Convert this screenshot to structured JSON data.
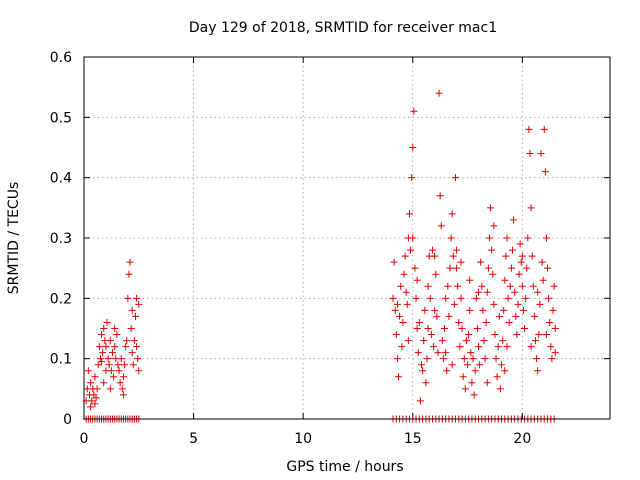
{
  "chart_data": {
    "type": "scatter",
    "title": "Day 129 of 2018, SRMTID for receiver mac1",
    "xlabel": "GPS time / hours",
    "ylabel": "SRMTID / TECUs",
    "xlim": [
      0,
      24
    ],
    "ylim": [
      0,
      0.6
    ],
    "xticks": [
      0,
      5,
      10,
      15,
      20
    ],
    "xtick_labels": [
      "0",
      "5",
      "10",
      "15",
      "20"
    ],
    "yticks": [
      0,
      0.1,
      0.2,
      0.3,
      0.4,
      0.5,
      0.6
    ],
    "ytick_labels": [
      "0",
      "0.1",
      "0.2",
      "0.3",
      "0.4",
      "0.5",
      "0.6"
    ],
    "grid": true,
    "marker": "+",
    "color": "#e00000",
    "series": [
      {
        "name": "mac1",
        "points": [
          [
            0.1,
            0.03
          ],
          [
            0.15,
            0.05
          ],
          [
            0.2,
            0.08
          ],
          [
            0.25,
            0.04
          ],
          [
            0.3,
            0.06
          ],
          [
            0.35,
            0.03
          ],
          [
            0.4,
            0.05
          ],
          [
            0.45,
            0.04
          ],
          [
            0.5,
            0.07
          ],
          [
            0.55,
            0.035
          ],
          [
            0.6,
            0.05
          ],
          [
            0.65,
            0.09
          ],
          [
            0.7,
            0.12
          ],
          [
            0.75,
            0.1
          ],
          [
            0.8,
            0.14
          ],
          [
            0.85,
            0.11
          ],
          [
            0.9,
            0.15
          ],
          [
            0.95,
            0.13
          ],
          [
            1.0,
            0.12
          ],
          [
            1.05,
            0.16
          ],
          [
            1.1,
            0.1
          ],
          [
            1.15,
            0.09
          ],
          [
            1.2,
            0.13
          ],
          [
            1.25,
            0.08
          ],
          [
            1.3,
            0.11
          ],
          [
            1.35,
            0.07
          ],
          [
            1.4,
            0.12
          ],
          [
            1.45,
            0.1
          ],
          [
            1.5,
            0.14
          ],
          [
            1.55,
            0.09
          ],
          [
            1.6,
            0.08
          ],
          [
            1.65,
            0.06
          ],
          [
            1.7,
            0.1
          ],
          [
            1.75,
            0.05
          ],
          [
            1.8,
            0.07
          ],
          [
            1.85,
            0.09
          ],
          [
            1.9,
            0.12
          ],
          [
            1.95,
            0.13
          ],
          [
            2.0,
            0.2
          ],
          [
            2.05,
            0.24
          ],
          [
            2.1,
            0.26
          ],
          [
            2.15,
            0.15
          ],
          [
            2.2,
            0.11
          ],
          [
            2.25,
            0.09
          ],
          [
            2.3,
            0.13
          ],
          [
            2.35,
            0.17
          ],
          [
            2.4,
            0.2
          ],
          [
            2.45,
            0.1
          ],
          [
            2.5,
            0.08
          ],
          [
            2.5,
            0.19
          ],
          [
            1.0,
            0.08
          ],
          [
            0.9,
            0.06
          ],
          [
            1.2,
            0.05
          ],
          [
            0.3,
            0.02
          ],
          [
            0.5,
            0.025
          ],
          [
            1.8,
            0.04
          ],
          [
            2.2,
            0.18
          ],
          [
            2.4,
            0.12
          ],
          [
            1.4,
            0.15
          ],
          [
            0.8,
            0.095
          ],
          [
            14.1,
            0.2
          ],
          [
            14.15,
            0.26
          ],
          [
            14.2,
            0.18
          ],
          [
            14.25,
            0.14
          ],
          [
            14.3,
            0.1
          ],
          [
            14.35,
            0.07
          ],
          [
            14.4,
            0.17
          ],
          [
            14.45,
            0.22
          ],
          [
            14.5,
            0.12
          ],
          [
            14.55,
            0.16
          ],
          [
            14.6,
            0.24
          ],
          [
            14.65,
            0.27
          ],
          [
            14.7,
            0.21
          ],
          [
            14.75,
            0.19
          ],
          [
            14.8,
            0.3
          ],
          [
            14.85,
            0.34
          ],
          [
            14.9,
            0.28
          ],
          [
            14.95,
            0.4
          ],
          [
            15.0,
            0.45
          ],
          [
            15.05,
            0.51
          ],
          [
            15.1,
            0.25
          ],
          [
            15.15,
            0.2
          ],
          [
            15.2,
            0.15
          ],
          [
            15.25,
            0.11
          ],
          [
            15.3,
            0.16
          ],
          [
            15.35,
            0.03
          ],
          [
            15.4,
            0.09
          ],
          [
            15.45,
            0.08
          ],
          [
            15.5,
            0.13
          ],
          [
            15.55,
            0.18
          ],
          [
            15.6,
            0.06
          ],
          [
            15.65,
            0.1
          ],
          [
            15.7,
            0.22
          ],
          [
            15.75,
            0.27
          ],
          [
            15.8,
            0.2
          ],
          [
            15.85,
            0.14
          ],
          [
            15.9,
            0.28
          ],
          [
            15.95,
            0.12
          ],
          [
            16.0,
            0.18
          ],
          [
            16.05,
            0.24
          ],
          [
            16.1,
            0.17
          ],
          [
            16.15,
            0.11
          ],
          [
            16.2,
            0.54
          ],
          [
            16.25,
            0.37
          ],
          [
            16.3,
            0.32
          ],
          [
            16.35,
            0.13
          ],
          [
            16.4,
            0.1
          ],
          [
            16.45,
            0.15
          ],
          [
            16.5,
            0.2
          ],
          [
            16.55,
            0.08
          ],
          [
            16.6,
            0.22
          ],
          [
            16.65,
            0.17
          ],
          [
            16.7,
            0.25
          ],
          [
            16.75,
            0.3
          ],
          [
            16.8,
            0.34
          ],
          [
            16.85,
            0.27
          ],
          [
            16.9,
            0.19
          ],
          [
            16.95,
            0.4
          ],
          [
            17.0,
            0.28
          ],
          [
            17.05,
            0.22
          ],
          [
            17.1,
            0.16
          ],
          [
            17.15,
            0.12
          ],
          [
            17.2,
            0.2
          ],
          [
            17.25,
            0.15
          ],
          [
            17.3,
            0.07
          ],
          [
            17.35,
            0.1
          ],
          [
            17.4,
            0.05
          ],
          [
            17.45,
            0.13
          ],
          [
            17.5,
            0.09
          ],
          [
            17.55,
            0.14
          ],
          [
            17.6,
            0.18
          ],
          [
            17.65,
            0.11
          ],
          [
            17.7,
            0.06
          ],
          [
            17.75,
            0.1
          ],
          [
            17.8,
            0.04
          ],
          [
            17.85,
            0.08
          ],
          [
            17.9,
            0.2
          ],
          [
            17.95,
            0.15
          ],
          [
            18.0,
            0.12
          ],
          [
            18.05,
            0.09
          ],
          [
            18.1,
            0.26
          ],
          [
            18.15,
            0.22
          ],
          [
            18.2,
            0.18
          ],
          [
            18.25,
            0.13
          ],
          [
            18.3,
            0.1
          ],
          [
            18.35,
            0.16
          ],
          [
            18.4,
            0.21
          ],
          [
            18.45,
            0.25
          ],
          [
            18.5,
            0.3
          ],
          [
            18.55,
            0.35
          ],
          [
            18.6,
            0.28
          ],
          [
            18.65,
            0.24
          ],
          [
            18.7,
            0.19
          ],
          [
            18.75,
            0.14
          ],
          [
            18.8,
            0.1
          ],
          [
            18.85,
            0.07
          ],
          [
            18.9,
            0.12
          ],
          [
            18.95,
            0.17
          ],
          [
            19.0,
            0.05
          ],
          [
            19.05,
            0.09
          ],
          [
            19.1,
            0.13
          ],
          [
            19.15,
            0.18
          ],
          [
            19.2,
            0.23
          ],
          [
            19.25,
            0.27
          ],
          [
            19.3,
            0.3
          ],
          [
            19.35,
            0.2
          ],
          [
            19.4,
            0.16
          ],
          [
            19.45,
            0.22
          ],
          [
            19.5,
            0.25
          ],
          [
            19.55,
            0.28
          ],
          [
            19.6,
            0.33
          ],
          [
            19.65,
            0.21
          ],
          [
            19.7,
            0.17
          ],
          [
            19.75,
            0.14
          ],
          [
            19.8,
            0.19
          ],
          [
            19.85,
            0.24
          ],
          [
            19.9,
            0.29
          ],
          [
            19.95,
            0.26
          ],
          [
            20.0,
            0.22
          ],
          [
            20.05,
            0.18
          ],
          [
            20.1,
            0.15
          ],
          [
            20.15,
            0.2
          ],
          [
            20.2,
            0.25
          ],
          [
            20.25,
            0.3
          ],
          [
            20.3,
            0.48
          ],
          [
            20.35,
            0.44
          ],
          [
            20.4,
            0.35
          ],
          [
            20.45,
            0.27
          ],
          [
            20.5,
            0.22
          ],
          [
            20.55,
            0.17
          ],
          [
            20.6,
            0.13
          ],
          [
            20.65,
            0.1
          ],
          [
            20.7,
            0.08
          ],
          [
            20.75,
            0.14
          ],
          [
            20.8,
            0.19
          ],
          [
            20.85,
            0.44
          ],
          [
            20.9,
            0.26
          ],
          [
            20.95,
            0.23
          ],
          [
            21.0,
            0.48
          ],
          [
            21.05,
            0.41
          ],
          [
            21.1,
            0.3
          ],
          [
            21.15,
            0.25
          ],
          [
            21.2,
            0.2
          ],
          [
            21.25,
            0.16
          ],
          [
            21.3,
            0.12
          ],
          [
            21.35,
            0.1
          ],
          [
            21.4,
            0.18
          ],
          [
            21.45,
            0.22
          ],
          [
            21.5,
            0.15
          ],
          [
            21.5,
            0.11
          ],
          [
            14.3,
            0.19
          ],
          [
            15.0,
            0.3
          ],
          [
            15.7,
            0.15
          ],
          [
            16.5,
            0.11
          ],
          [
            17.2,
            0.26
          ],
          [
            18.0,
            0.21
          ],
          [
            18.7,
            0.32
          ],
          [
            19.3,
            0.12
          ],
          [
            20.0,
            0.27
          ],
          [
            20.7,
            0.21
          ],
          [
            15.2,
            0.23
          ],
          [
            16.0,
            0.27
          ],
          [
            16.8,
            0.09
          ],
          [
            17.6,
            0.23
          ],
          [
            18.4,
            0.06
          ],
          [
            19.2,
            0.08
          ],
          [
            20.4,
            0.12
          ],
          [
            21.1,
            0.14
          ],
          [
            14.8,
            0.13
          ],
          [
            17.0,
            0.25
          ]
        ]
      }
    ],
    "zero_points_x": [
      0.1,
      0.2,
      0.3,
      0.4,
      0.5,
      0.6,
      0.7,
      0.8,
      0.9,
      1.0,
      1.1,
      1.2,
      1.3,
      1.4,
      1.5,
      1.6,
      1.7,
      1.8,
      1.9,
      2.0,
      2.1,
      2.2,
      2.3,
      2.4,
      2.5,
      14.1,
      14.25,
      14.4,
      14.55,
      14.7,
      14.85,
      15.0,
      15.15,
      15.3,
      15.45,
      15.6,
      15.75,
      15.9,
      16.05,
      16.2,
      16.35,
      16.5,
      16.65,
      16.8,
      16.95,
      17.1,
      17.25,
      17.4,
      17.55,
      17.7,
      17.85,
      18.0,
      18.15,
      18.3,
      18.45,
      18.6,
      18.75,
      18.9,
      19.05,
      19.2,
      19.35,
      19.5,
      19.65,
      19.8,
      19.95,
      20.1,
      20.25,
      20.4,
      20.55,
      20.7,
      20.85,
      21.0,
      21.15,
      21.3,
      21.45
    ]
  }
}
